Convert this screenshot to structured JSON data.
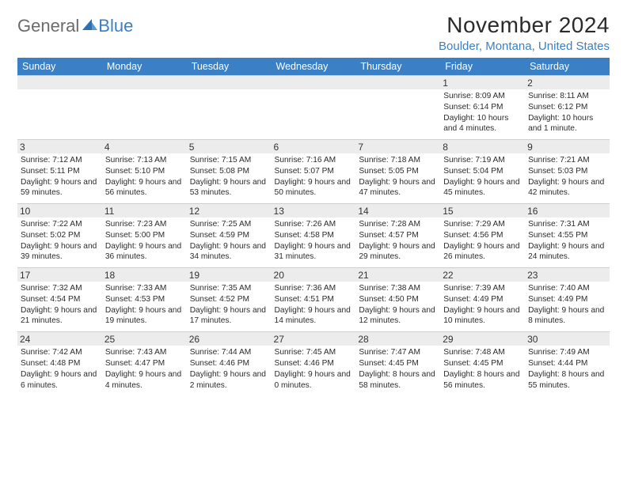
{
  "brand": {
    "part1": "General",
    "part2": "Blue"
  },
  "title": "November 2024",
  "location": "Boulder, Montana, United States",
  "colors": {
    "header_bg": "#3b7fc4",
    "header_text": "#ffffff",
    "shade_bg": "#ececec",
    "border": "#cfcfcf",
    "brand_grey": "#6b6b6b",
    "brand_blue": "#3b7fc4",
    "text": "#2b2b2b"
  },
  "dayNames": [
    "Sunday",
    "Monday",
    "Tuesday",
    "Wednesday",
    "Thursday",
    "Friday",
    "Saturday"
  ],
  "weeks": [
    [
      null,
      null,
      null,
      null,
      null,
      {
        "n": "1",
        "sr": "8:09 AM",
        "ss": "6:14 PM",
        "dl": "10 hours and 4 minutes."
      },
      {
        "n": "2",
        "sr": "8:11 AM",
        "ss": "6:12 PM",
        "dl": "10 hours and 1 minute."
      }
    ],
    [
      {
        "n": "3",
        "sr": "7:12 AM",
        "ss": "5:11 PM",
        "dl": "9 hours and 59 minutes."
      },
      {
        "n": "4",
        "sr": "7:13 AM",
        "ss": "5:10 PM",
        "dl": "9 hours and 56 minutes."
      },
      {
        "n": "5",
        "sr": "7:15 AM",
        "ss": "5:08 PM",
        "dl": "9 hours and 53 minutes."
      },
      {
        "n": "6",
        "sr": "7:16 AM",
        "ss": "5:07 PM",
        "dl": "9 hours and 50 minutes."
      },
      {
        "n": "7",
        "sr": "7:18 AM",
        "ss": "5:05 PM",
        "dl": "9 hours and 47 minutes."
      },
      {
        "n": "8",
        "sr": "7:19 AM",
        "ss": "5:04 PM",
        "dl": "9 hours and 45 minutes."
      },
      {
        "n": "9",
        "sr": "7:21 AM",
        "ss": "5:03 PM",
        "dl": "9 hours and 42 minutes."
      }
    ],
    [
      {
        "n": "10",
        "sr": "7:22 AM",
        "ss": "5:02 PM",
        "dl": "9 hours and 39 minutes."
      },
      {
        "n": "11",
        "sr": "7:23 AM",
        "ss": "5:00 PM",
        "dl": "9 hours and 36 minutes."
      },
      {
        "n": "12",
        "sr": "7:25 AM",
        "ss": "4:59 PM",
        "dl": "9 hours and 34 minutes."
      },
      {
        "n": "13",
        "sr": "7:26 AM",
        "ss": "4:58 PM",
        "dl": "9 hours and 31 minutes."
      },
      {
        "n": "14",
        "sr": "7:28 AM",
        "ss": "4:57 PM",
        "dl": "9 hours and 29 minutes."
      },
      {
        "n": "15",
        "sr": "7:29 AM",
        "ss": "4:56 PM",
        "dl": "9 hours and 26 minutes."
      },
      {
        "n": "16",
        "sr": "7:31 AM",
        "ss": "4:55 PM",
        "dl": "9 hours and 24 minutes."
      }
    ],
    [
      {
        "n": "17",
        "sr": "7:32 AM",
        "ss": "4:54 PM",
        "dl": "9 hours and 21 minutes."
      },
      {
        "n": "18",
        "sr": "7:33 AM",
        "ss": "4:53 PM",
        "dl": "9 hours and 19 minutes."
      },
      {
        "n": "19",
        "sr": "7:35 AM",
        "ss": "4:52 PM",
        "dl": "9 hours and 17 minutes."
      },
      {
        "n": "20",
        "sr": "7:36 AM",
        "ss": "4:51 PM",
        "dl": "9 hours and 14 minutes."
      },
      {
        "n": "21",
        "sr": "7:38 AM",
        "ss": "4:50 PM",
        "dl": "9 hours and 12 minutes."
      },
      {
        "n": "22",
        "sr": "7:39 AM",
        "ss": "4:49 PM",
        "dl": "9 hours and 10 minutes."
      },
      {
        "n": "23",
        "sr": "7:40 AM",
        "ss": "4:49 PM",
        "dl": "9 hours and 8 minutes."
      }
    ],
    [
      {
        "n": "24",
        "sr": "7:42 AM",
        "ss": "4:48 PM",
        "dl": "9 hours and 6 minutes."
      },
      {
        "n": "25",
        "sr": "7:43 AM",
        "ss": "4:47 PM",
        "dl": "9 hours and 4 minutes."
      },
      {
        "n": "26",
        "sr": "7:44 AM",
        "ss": "4:46 PM",
        "dl": "9 hours and 2 minutes."
      },
      {
        "n": "27",
        "sr": "7:45 AM",
        "ss": "4:46 PM",
        "dl": "9 hours and 0 minutes."
      },
      {
        "n": "28",
        "sr": "7:47 AM",
        "ss": "4:45 PM",
        "dl": "8 hours and 58 minutes."
      },
      {
        "n": "29",
        "sr": "7:48 AM",
        "ss": "4:45 PM",
        "dl": "8 hours and 56 minutes."
      },
      {
        "n": "30",
        "sr": "7:49 AM",
        "ss": "4:44 PM",
        "dl": "8 hours and 55 minutes."
      }
    ]
  ],
  "labels": {
    "sunrise": "Sunrise:",
    "sunset": "Sunset:",
    "daylight": "Daylight:"
  }
}
